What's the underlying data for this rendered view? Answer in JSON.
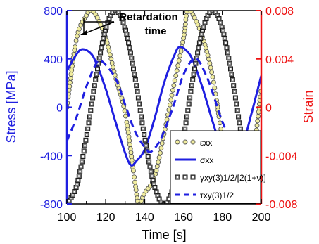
{
  "chart_data": {
    "type": "line",
    "xlabel": "Time [s]",
    "ylabel_left": "Stress [MPa]",
    "ylabel_right": "Strain",
    "xlim": [
      100,
      200
    ],
    "ylim_left": [
      -800,
      800
    ],
    "ylim_right": [
      -0.008,
      0.008
    ],
    "xticks": [
      "100",
      "120",
      "140",
      "160",
      "180",
      "200"
    ],
    "yticks_left": [
      "-800",
      "-400",
      "0",
      "400",
      "800"
    ],
    "yticks_right": [
      "-0.008",
      "-0.004",
      "0",
      "0.004",
      "0.008"
    ],
    "colors": {
      "left_axis": "#1f1fe0",
      "right_axis": "#ee1111",
      "stress": "#1f1fe0",
      "marker_face": "#f0ec9e",
      "marker_edge": "#555555"
    },
    "annotation": {
      "line1": "Retardation",
      "line2": "time"
    },
    "legend_position": "bottom-right",
    "legend": [
      {
        "key": "eps",
        "label": "εxx"
      },
      {
        "key": "sig",
        "label": "σxx"
      },
      {
        "key": "gam",
        "label": "γxy(3)1/2/[2(1+ν)]"
      },
      {
        "key": "tau",
        "label": "τxy(3)1/2"
      }
    ],
    "series": [
      {
        "key": "eps",
        "axis": "right",
        "style": "circle-markers",
        "x": [
          100,
          105,
          110,
          112,
          115,
          120,
          125,
          130,
          135,
          137,
          140,
          145,
          150,
          155,
          160,
          162,
          165,
          170,
          175,
          180,
          185,
          187,
          190,
          195,
          200
        ],
        "values": [
          0.0,
          0.0057,
          0.0076,
          0.008,
          0.0076,
          0.0057,
          0.0025,
          -0.0005,
          -0.0062,
          -0.008,
          -0.0071,
          -0.0058,
          -0.0022,
          0.0018,
          0.0057,
          0.008,
          0.0076,
          0.0057,
          0.0025,
          -0.0025,
          -0.0062,
          -0.008,
          -0.0071,
          -0.0048,
          0.0015
        ]
      },
      {
        "key": "sig",
        "axis": "left",
        "style": "solid",
        "x": [
          100,
          105,
          108,
          112,
          115,
          120,
          125,
          130,
          133,
          136,
          140,
          145,
          150,
          155,
          158,
          162,
          165,
          170,
          175,
          180,
          183,
          186,
          190,
          195,
          200
        ],
        "values": [
          300,
          440,
          480,
          450,
          370,
          150,
          -120,
          -380,
          -480,
          -440,
          -350,
          -100,
          200,
          420,
          500,
          460,
          380,
          150,
          -120,
          -370,
          -480,
          -420,
          -340,
          -50,
          260
        ]
      },
      {
        "key": "gam",
        "axis": "right",
        "style": "square-markers",
        "x": [
          100,
          105,
          110,
          115,
          120,
          125,
          130,
          135,
          140,
          145,
          150,
          155,
          160,
          165,
          170,
          175,
          180,
          185,
          190,
          195,
          200
        ],
        "values": [
          -0.008,
          -0.0065,
          -0.0025,
          0.0025,
          0.0065,
          0.008,
          0.0065,
          0.0025,
          -0.0025,
          -0.0065,
          -0.008,
          -0.0065,
          -0.0025,
          0.0025,
          0.0065,
          0.008,
          0.0065,
          0.0025,
          -0.0025,
          -0.0065,
          -0.008
        ]
      },
      {
        "key": "tau",
        "axis": "left",
        "style": "dashed",
        "x": [
          100,
          105,
          110,
          115,
          118,
          125,
          130,
          135,
          140,
          143,
          147,
          150,
          155,
          160,
          165,
          168,
          172,
          175,
          180,
          185,
          190,
          193
        ],
        "values": [
          -280,
          -80,
          170,
          360,
          380,
          240,
          20,
          -200,
          -330,
          -370,
          -300,
          -200,
          20,
          270,
          400,
          380,
          250,
          120,
          -120,
          -280,
          -370,
          -340
        ]
      }
    ]
  }
}
